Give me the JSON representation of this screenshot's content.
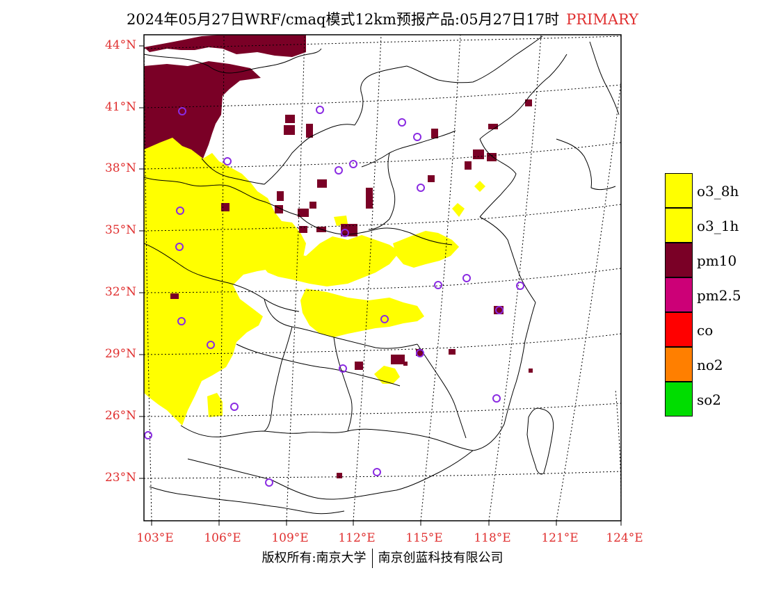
{
  "title": {
    "main": "2024年05月27日WRF/cmaq模式12km预报产品:05月27日17时",
    "tag": "PRIMARY"
  },
  "map": {
    "lat_labels": [
      "44°N",
      "41°N",
      "38°N",
      "35°N",
      "32°N",
      "29°N",
      "26°N",
      "23°N"
    ],
    "lon_labels": [
      "103°E",
      "106°E",
      "109°E",
      "112°E",
      "115°E",
      "118°E",
      "121°E",
      "124°E"
    ]
  },
  "legend": {
    "items": [
      {
        "label": "o3_8h",
        "color": "#ffff00"
      },
      {
        "label": "o3_1h",
        "color": "#ffff00"
      },
      {
        "label": "pm10",
        "color": "#7a0026"
      },
      {
        "label": "pm2.5",
        "color": "#cc0077"
      },
      {
        "label": "co",
        "color": "#ff0000"
      },
      {
        "label": "no2",
        "color": "#ff7f00"
      },
      {
        "label": "so2",
        "color": "#00dd00"
      }
    ]
  },
  "footer": {
    "left": "版权所有:南京大学",
    "right": "南京创蓝科技有限公司"
  },
  "colors": {
    "o3": "#ffff00",
    "pm10": "#7a0026",
    "station_marker": "#8a2be2",
    "tick_label": "#e03030"
  }
}
